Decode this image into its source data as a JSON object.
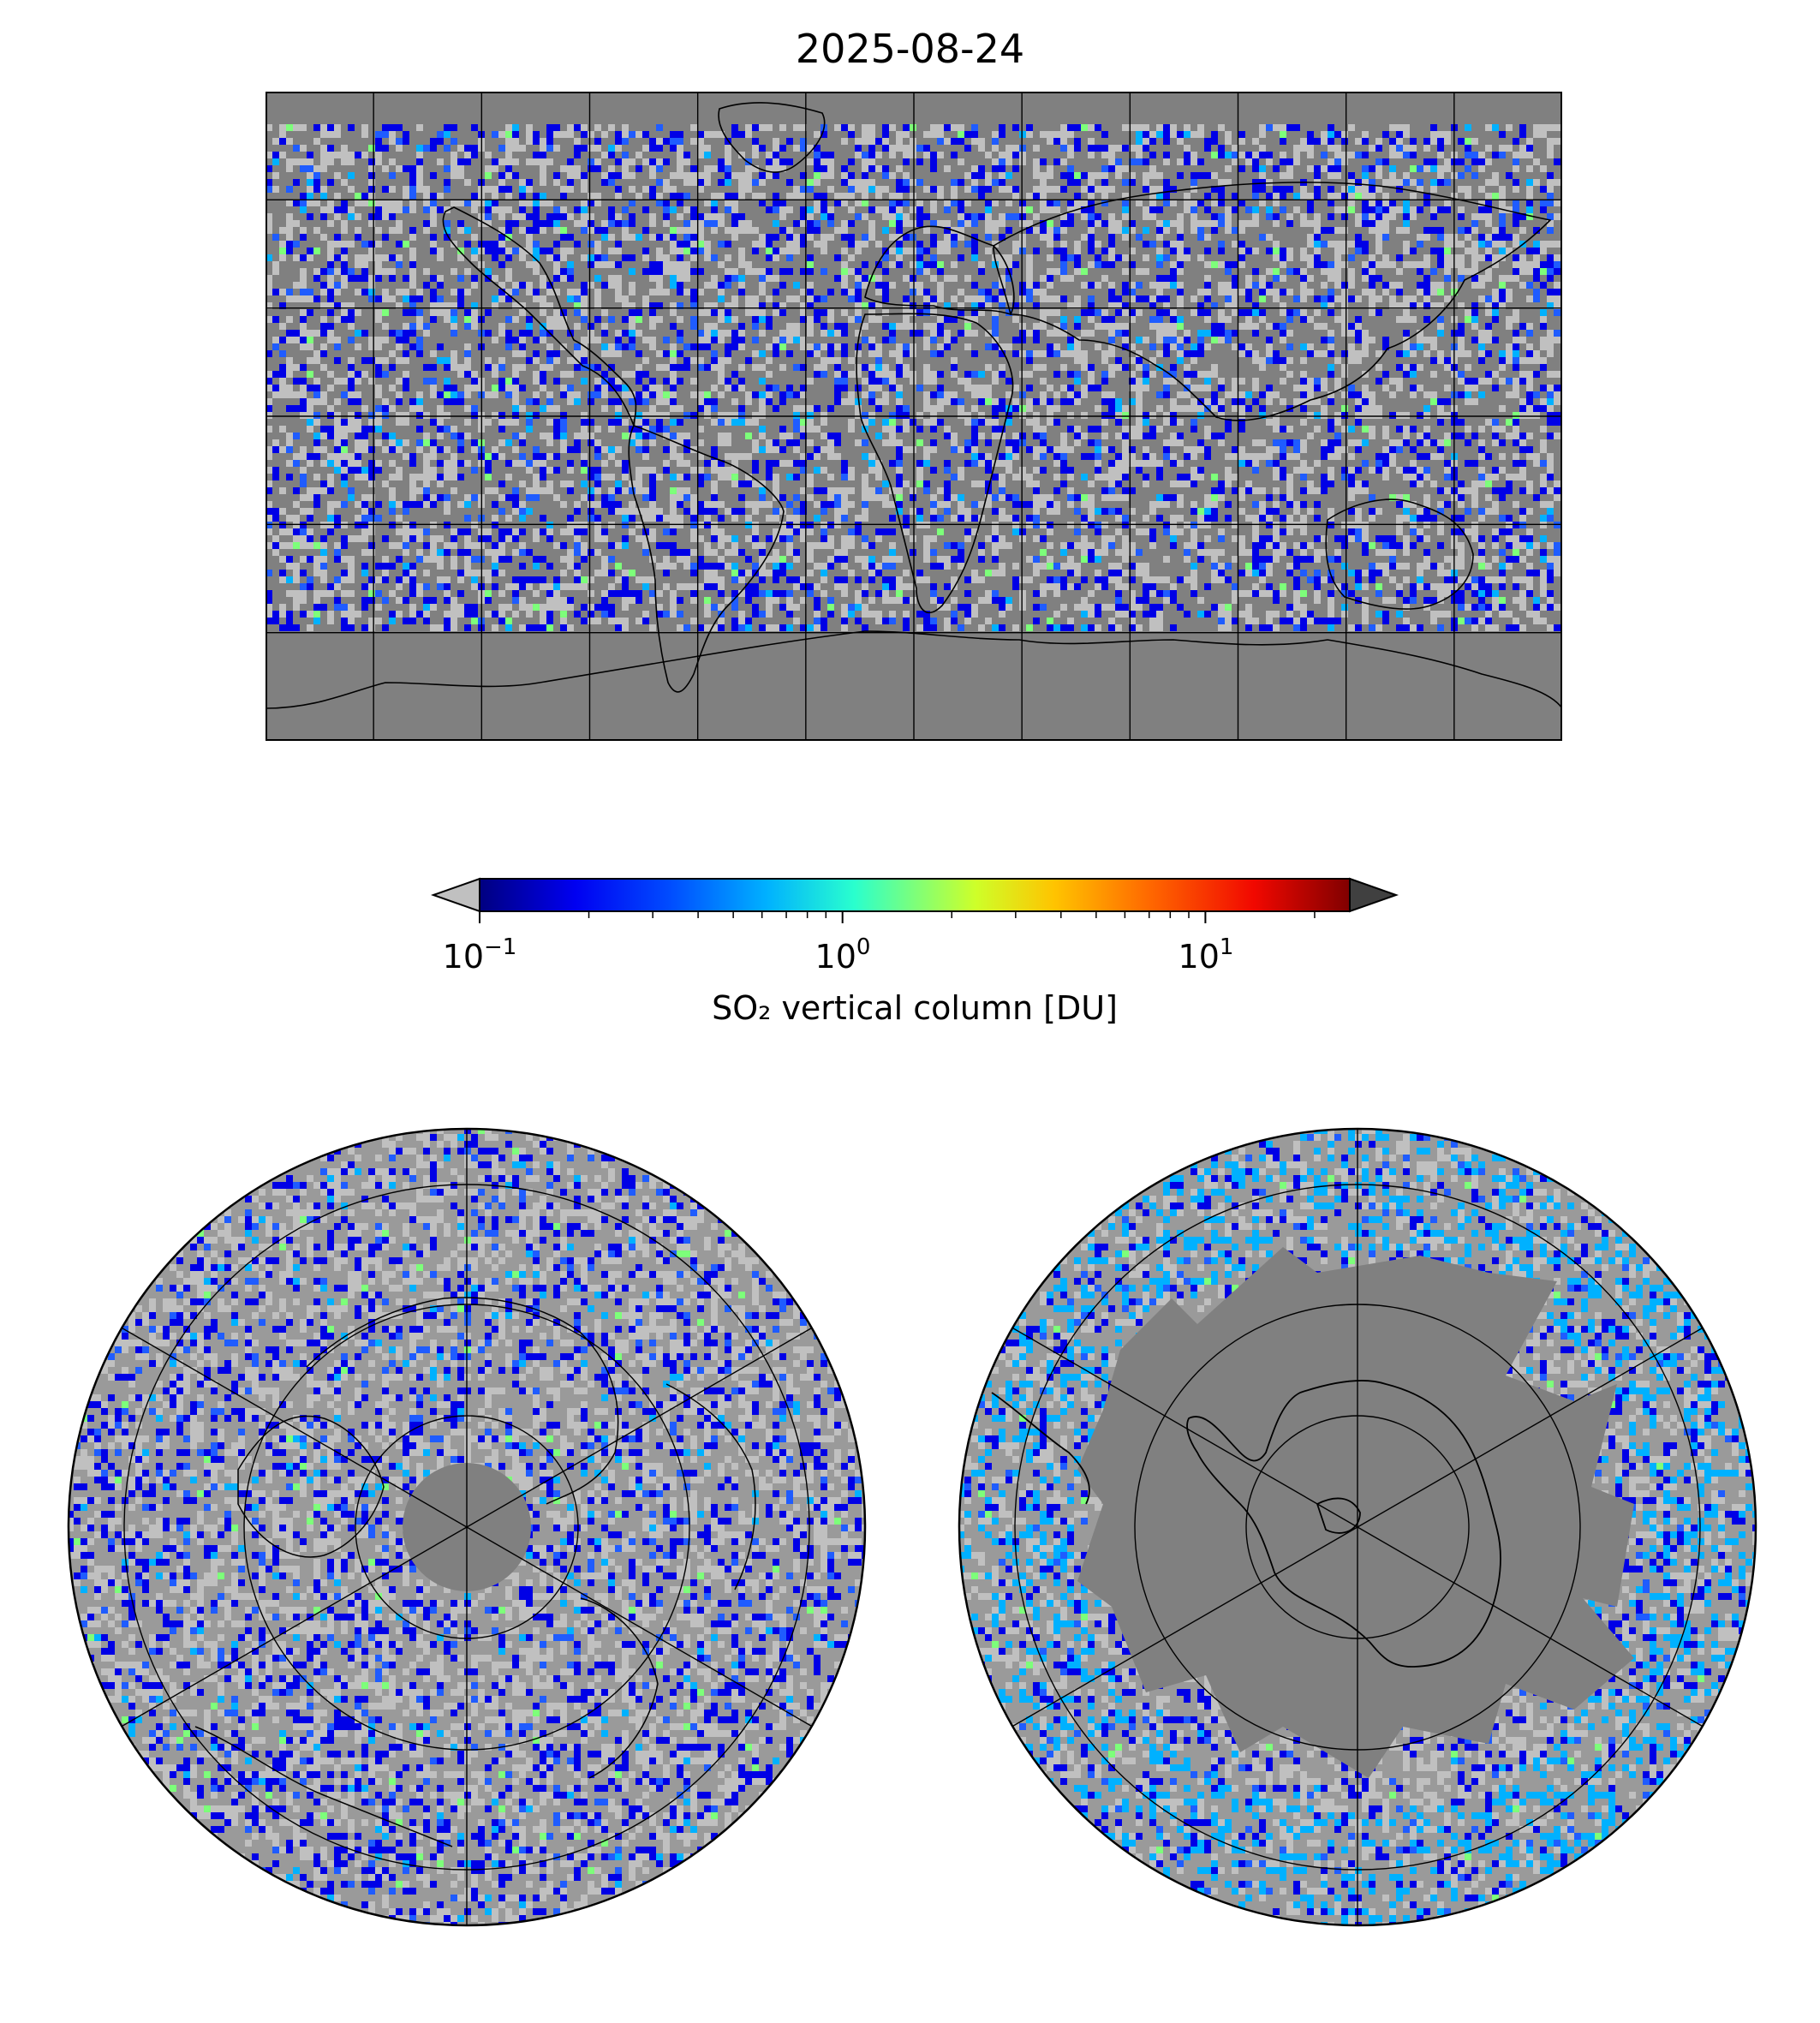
{
  "title": "2025-08-24",
  "colorbar": {
    "label": "SO₂ vertical column [DU]",
    "scale": "log",
    "range": [
      0.1,
      25
    ],
    "tick_labels": [
      {
        "base": "10",
        "exp": "−1",
        "value": 0.1
      },
      {
        "base": "10",
        "exp": "0",
        "value": 1
      },
      {
        "base": "10",
        "exp": "1",
        "value": 10
      }
    ],
    "extend": "both",
    "under_color": "#c0c0c0",
    "over_color": "#404040",
    "colormap": [
      "#000080",
      "#0000f1",
      "#004dff",
      "#00b1ff",
      "#29ffce",
      "#7dff7a",
      "#ceff29",
      "#ffc400",
      "#ff6800",
      "#f10800",
      "#800000"
    ]
  },
  "colors": {
    "missing_data": "#808080",
    "below_range_light": "#c0c0c0",
    "coastline": "#000000"
  },
  "panels": [
    {
      "name": "world-map",
      "projection": "PlateCarree",
      "lon_grid_step": 30,
      "lat_grid_step": 30
    },
    {
      "name": "north-polar",
      "projection": "NorthPolarStereo",
      "lat_circles": [
        40,
        60,
        80
      ]
    },
    {
      "name": "south-polar",
      "projection": "SouthPolarStereo",
      "lat_circles": [
        -40,
        -60,
        -80
      ]
    }
  ]
}
